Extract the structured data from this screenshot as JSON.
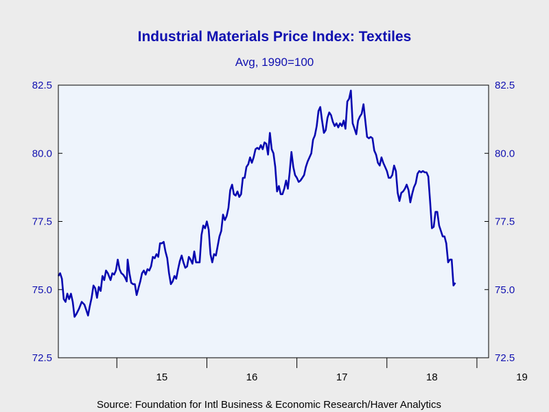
{
  "chart_data": {
    "type": "line",
    "title": "Industrial Materials Price Index: Textiles",
    "subtitle": "Avg, 1990=100",
    "source": "Source:  Foundation for Intl Business & Economic Research/Haver Analytics",
    "ylim": [
      72.5,
      82.5
    ],
    "y_ticks": [
      "72.5",
      "75.0",
      "77.5",
      "80.0",
      "82.5"
    ],
    "x_ticks": [
      "15",
      "16",
      "17",
      "18",
      "19"
    ],
    "xlim": [
      2014.35,
      2019.13
    ],
    "grid": false,
    "colors": {
      "line": "#0808b0",
      "plot_bg": "#eef4fc",
      "text": "#1010b0",
      "page_bg": "#ececec"
    },
    "series": [
      {
        "points": [
          [
            2014.35,
            75.5
          ],
          [
            2014.37,
            75.6
          ],
          [
            2014.39,
            75.4
          ],
          [
            2014.41,
            74.65
          ],
          [
            2014.43,
            74.55
          ],
          [
            2014.45,
            74.85
          ],
          [
            2014.47,
            74.65
          ],
          [
            2014.49,
            74.85
          ],
          [
            2014.51,
            74.55
          ],
          [
            2014.53,
            74.0
          ],
          [
            2014.55,
            74.1
          ],
          [
            2014.58,
            74.3
          ],
          [
            2014.61,
            74.55
          ],
          [
            2014.64,
            74.45
          ],
          [
            2014.66,
            74.25
          ],
          [
            2014.68,
            74.05
          ],
          [
            2014.7,
            74.4
          ],
          [
            2014.72,
            74.7
          ],
          [
            2014.74,
            75.15
          ],
          [
            2014.76,
            75.05
          ],
          [
            2014.78,
            74.7
          ],
          [
            2014.8,
            75.1
          ],
          [
            2014.82,
            74.95
          ],
          [
            2014.84,
            75.5
          ],
          [
            2014.86,
            75.35
          ],
          [
            2014.88,
            75.7
          ],
          [
            2014.9,
            75.6
          ],
          [
            2014.93,
            75.35
          ],
          [
            2014.95,
            75.6
          ],
          [
            2014.97,
            75.55
          ],
          [
            2014.99,
            75.7
          ],
          [
            2015.01,
            76.1
          ],
          [
            2015.03,
            75.75
          ],
          [
            2015.05,
            75.6
          ],
          [
            2015.07,
            75.55
          ],
          [
            2015.09,
            75.45
          ],
          [
            2015.11,
            75.3
          ],
          [
            2015.12,
            76.1
          ],
          [
            2015.14,
            75.6
          ],
          [
            2015.16,
            75.25
          ],
          [
            2015.18,
            75.2
          ],
          [
            2015.2,
            75.2
          ],
          [
            2015.22,
            74.8
          ],
          [
            2015.24,
            75.05
          ],
          [
            2015.26,
            75.3
          ],
          [
            2015.28,
            75.6
          ],
          [
            2015.3,
            75.7
          ],
          [
            2015.32,
            75.55
          ],
          [
            2015.34,
            75.75
          ],
          [
            2015.36,
            75.7
          ],
          [
            2015.38,
            75.85
          ],
          [
            2015.4,
            76.2
          ],
          [
            2015.42,
            76.15
          ],
          [
            2015.44,
            76.3
          ],
          [
            2015.46,
            76.2
          ],
          [
            2015.48,
            76.7
          ],
          [
            2015.5,
            76.7
          ],
          [
            2015.52,
            76.75
          ],
          [
            2015.54,
            76.4
          ],
          [
            2015.56,
            76.15
          ],
          [
            2015.58,
            75.6
          ],
          [
            2015.6,
            75.2
          ],
          [
            2015.62,
            75.3
          ],
          [
            2015.64,
            75.5
          ],
          [
            2015.66,
            75.4
          ],
          [
            2015.68,
            75.75
          ],
          [
            2015.7,
            76.05
          ],
          [
            2015.72,
            76.25
          ],
          [
            2015.74,
            76.0
          ],
          [
            2015.76,
            75.8
          ],
          [
            2015.78,
            75.85
          ],
          [
            2015.8,
            76.2
          ],
          [
            2015.82,
            76.1
          ],
          [
            2015.84,
            75.95
          ],
          [
            2015.86,
            76.4
          ],
          [
            2015.88,
            76.0
          ],
          [
            2015.9,
            76.0
          ],
          [
            2015.92,
            76.0
          ],
          [
            2015.94,
            77.0
          ],
          [
            2015.96,
            77.35
          ],
          [
            2015.98,
            77.25
          ],
          [
            2016.0,
            77.5
          ],
          [
            2016.02,
            77.2
          ],
          [
            2016.04,
            76.3
          ],
          [
            2016.06,
            76.0
          ],
          [
            2016.08,
            76.3
          ],
          [
            2016.1,
            76.25
          ],
          [
            2016.12,
            76.6
          ],
          [
            2016.14,
            76.95
          ],
          [
            2016.16,
            77.15
          ],
          [
            2016.18,
            77.75
          ],
          [
            2016.2,
            77.55
          ],
          [
            2016.22,
            77.7
          ],
          [
            2016.24,
            78.0
          ],
          [
            2016.26,
            78.65
          ],
          [
            2016.28,
            78.85
          ],
          [
            2016.3,
            78.5
          ],
          [
            2016.32,
            78.45
          ],
          [
            2016.34,
            78.6
          ],
          [
            2016.36,
            78.4
          ],
          [
            2016.38,
            78.5
          ],
          [
            2016.4,
            79.1
          ],
          [
            2016.42,
            79.1
          ],
          [
            2016.44,
            79.5
          ],
          [
            2016.46,
            79.6
          ],
          [
            2016.48,
            79.85
          ],
          [
            2016.5,
            79.65
          ],
          [
            2016.52,
            79.85
          ],
          [
            2016.54,
            80.15
          ],
          [
            2016.56,
            80.2
          ],
          [
            2016.58,
            80.15
          ],
          [
            2016.6,
            80.3
          ],
          [
            2016.62,
            80.15
          ],
          [
            2016.64,
            80.4
          ],
          [
            2016.66,
            80.35
          ],
          [
            2016.68,
            79.95
          ],
          [
            2016.7,
            80.75
          ],
          [
            2016.72,
            80.15
          ],
          [
            2016.74,
            80.0
          ],
          [
            2016.76,
            79.5
          ],
          [
            2016.78,
            78.6
          ],
          [
            2016.8,
            78.8
          ],
          [
            2016.82,
            78.5
          ],
          [
            2016.84,
            78.5
          ],
          [
            2016.86,
            78.7
          ],
          [
            2016.88,
            79.0
          ],
          [
            2016.9,
            78.7
          ],
          [
            2016.92,
            79.3
          ],
          [
            2016.94,
            80.05
          ],
          [
            2016.96,
            79.5
          ],
          [
            2016.98,
            79.2
          ],
          [
            2017.0,
            79.1
          ],
          [
            2017.02,
            78.95
          ],
          [
            2017.04,
            79.0
          ],
          [
            2017.06,
            79.1
          ],
          [
            2017.08,
            79.2
          ],
          [
            2017.1,
            79.5
          ],
          [
            2017.12,
            79.7
          ],
          [
            2017.14,
            79.85
          ],
          [
            2017.16,
            80.0
          ],
          [
            2017.18,
            80.5
          ],
          [
            2017.2,
            80.65
          ],
          [
            2017.22,
            81.0
          ],
          [
            2017.24,
            81.55
          ],
          [
            2017.26,
            81.7
          ],
          [
            2017.28,
            81.2
          ],
          [
            2017.3,
            80.75
          ],
          [
            2017.32,
            80.85
          ],
          [
            2017.34,
            81.3
          ],
          [
            2017.36,
            81.5
          ],
          [
            2017.38,
            81.4
          ],
          [
            2017.4,
            81.15
          ],
          [
            2017.42,
            81.0
          ],
          [
            2017.44,
            81.1
          ],
          [
            2017.46,
            80.95
          ],
          [
            2017.48,
            81.1
          ],
          [
            2017.5,
            81.0
          ],
          [
            2017.52,
            81.2
          ],
          [
            2017.54,
            80.9
          ],
          [
            2017.56,
            81.9
          ],
          [
            2017.58,
            82.0
          ],
          [
            2017.6,
            82.3
          ],
          [
            2017.62,
            81.1
          ],
          [
            2017.64,
            80.9
          ],
          [
            2017.66,
            80.7
          ],
          [
            2017.68,
            81.2
          ],
          [
            2017.7,
            81.35
          ],
          [
            2017.72,
            81.45
          ],
          [
            2017.74,
            81.8
          ],
          [
            2017.76,
            81.2
          ],
          [
            2017.78,
            80.6
          ],
          [
            2017.8,
            80.55
          ],
          [
            2017.82,
            80.6
          ],
          [
            2017.84,
            80.55
          ],
          [
            2017.86,
            80.1
          ],
          [
            2017.88,
            79.95
          ],
          [
            2017.9,
            79.65
          ],
          [
            2017.92,
            79.55
          ],
          [
            2017.94,
            79.85
          ],
          [
            2017.96,
            79.65
          ],
          [
            2017.98,
            79.5
          ],
          [
            2018.0,
            79.35
          ],
          [
            2018.02,
            79.1
          ],
          [
            2018.04,
            79.1
          ],
          [
            2018.06,
            79.2
          ],
          [
            2018.08,
            79.55
          ],
          [
            2018.1,
            79.35
          ],
          [
            2018.12,
            78.55
          ],
          [
            2018.14,
            78.25
          ],
          [
            2018.16,
            78.55
          ],
          [
            2018.18,
            78.6
          ],
          [
            2018.2,
            78.7
          ],
          [
            2018.22,
            78.85
          ],
          [
            2018.24,
            78.65
          ],
          [
            2018.26,
            78.2
          ],
          [
            2018.28,
            78.5
          ],
          [
            2018.3,
            78.75
          ],
          [
            2018.32,
            78.9
          ],
          [
            2018.34,
            79.25
          ],
          [
            2018.36,
            79.35
          ],
          [
            2018.38,
            79.3
          ],
          [
            2018.4,
            79.35
          ],
          [
            2018.42,
            79.3
          ],
          [
            2018.44,
            79.3
          ],
          [
            2018.46,
            79.15
          ],
          [
            2018.48,
            78.25
          ],
          [
            2018.5,
            77.25
          ],
          [
            2018.52,
            77.3
          ],
          [
            2018.54,
            77.85
          ],
          [
            2018.56,
            77.85
          ],
          [
            2018.58,
            77.35
          ],
          [
            2018.6,
            77.15
          ],
          [
            2018.62,
            76.95
          ],
          [
            2018.64,
            76.95
          ],
          [
            2018.66,
            76.7
          ],
          [
            2018.68,
            76.0
          ],
          [
            2018.7,
            76.1
          ],
          [
            2018.72,
            76.1
          ],
          [
            2018.74,
            75.15
          ],
          [
            2018.76,
            75.25
          ]
        ]
      }
    ]
  }
}
